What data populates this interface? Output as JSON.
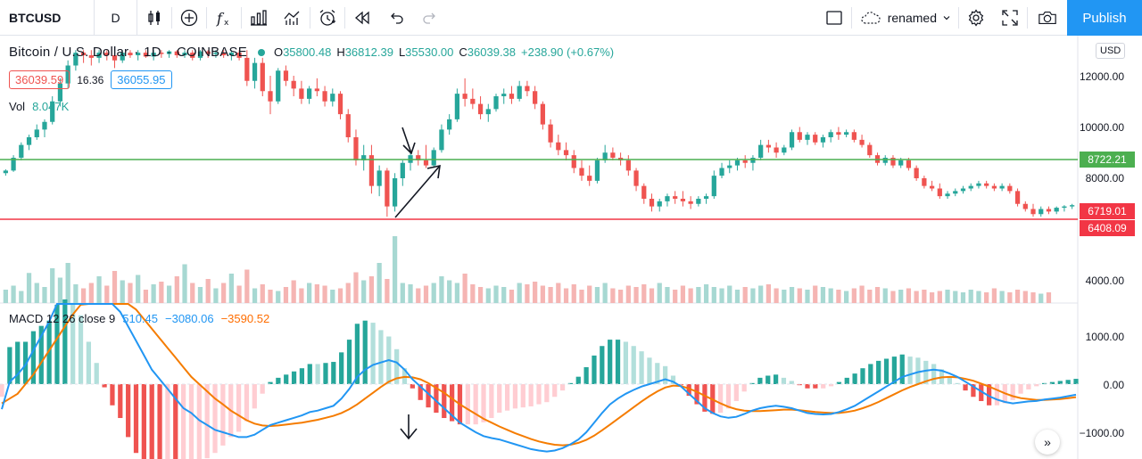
{
  "toolbar": {
    "symbol": "BTCUSD",
    "interval": "D",
    "layout_name": "renamed",
    "publish_label": "Publish",
    "icons": [
      "candles-icon",
      "add-compare-icon",
      "indicators-icon",
      "templates-icon",
      "alert-icon",
      "replay-icon",
      "undo-icon",
      "redo-icon",
      "fullscreen-select-icon",
      "cloud-icon",
      "settings-icon",
      "fullscreen-icon",
      "snapshot-icon"
    ]
  },
  "legend": {
    "title": "Bitcoin / U.S. Dollar",
    "interval": "1D",
    "exchange": "COINBASE",
    "o_label": "O",
    "o": "35800.48",
    "h_label": "H",
    "h": "36812.39",
    "l_label": "L",
    "l": "35530.00",
    "c_label": "C",
    "c": "36039.38",
    "change": "+238.90 (+0.67%)",
    "sell_price": "36039.59",
    "spread": "16.36",
    "buy_price": "36055.95",
    "vol_label": "Vol",
    "vol_value": "8.047K",
    "macd_label": "MACD 12 26 close 9",
    "macd_hist": "510.45",
    "macd_line": "−3080.06",
    "macd_signal": "−3590.52"
  },
  "axis": {
    "currency": "USD",
    "price_ticks": [
      "12000.00",
      "10000.00",
      "8000.00",
      "4000.00"
    ],
    "macd_ticks": [
      "1000.00",
      "0.00",
      "−1000.00"
    ]
  },
  "levels": {
    "green_value": "8722.21",
    "red_value_1": "6719.01",
    "red_value_2": "6408.09",
    "green_color": "#4caf50",
    "red_color": "#f23645"
  },
  "chart_data": {
    "type": "candlestick",
    "up_color": "#26a69a",
    "down_color": "#ef5350",
    "ylim": [
      6000,
      13000
    ],
    "candles": [
      [
        8200,
        8350,
        8100,
        8300
      ],
      [
        8300,
        8900,
        8250,
        8800
      ],
      [
        8800,
        9400,
        8700,
        9300
      ],
      [
        9300,
        9700,
        9100,
        9600
      ],
      [
        9600,
        10100,
        9500,
        9900
      ],
      [
        9900,
        10300,
        9600,
        10200
      ],
      [
        10200,
        11200,
        10100,
        11000
      ],
      [
        11000,
        11900,
        10800,
        11700
      ],
      [
        11700,
        12600,
        11500,
        12400
      ],
      [
        12400,
        13000,
        12200,
        12900
      ],
      [
        12900,
        13000,
        12500,
        12800
      ],
      [
        12800,
        13000,
        12400,
        12700
      ],
      [
        12700,
        13000,
        12500,
        12900
      ],
      [
        12900,
        13000,
        12600,
        12800
      ],
      [
        12800,
        13000,
        12300,
        12600
      ],
      [
        12600,
        13000,
        12500,
        12900
      ],
      [
        12900,
        13000,
        12700,
        12800
      ],
      [
        12800,
        13000,
        12600,
        12900
      ],
      [
        12900,
        13000,
        12700,
        12750
      ],
      [
        12750,
        13000,
        12600,
        12900
      ],
      [
        12900,
        13000,
        12700,
        12850
      ],
      [
        12850,
        13000,
        12700,
        12950
      ],
      [
        12950,
        13000,
        12700,
        12800
      ],
      [
        12800,
        13000,
        12700,
        12900
      ],
      [
        12900,
        13000,
        12600,
        12700
      ],
      [
        12700,
        13000,
        12600,
        12950
      ],
      [
        12950,
        13000,
        12700,
        12850
      ],
      [
        12850,
        13000,
        12700,
        12900
      ],
      [
        12900,
        13000,
        12700,
        12800
      ],
      [
        12800,
        13000,
        12600,
        12900
      ],
      [
        12900,
        13000,
        12600,
        12700
      ],
      [
        12700,
        13000,
        11600,
        11800
      ],
      [
        11800,
        12700,
        11500,
        12500
      ],
      [
        12500,
        12700,
        11200,
        11400
      ],
      [
        11400,
        12000,
        10500,
        11000
      ],
      [
        11000,
        12300,
        10900,
        12200
      ],
      [
        12200,
        12400,
        11600,
        11800
      ],
      [
        11800,
        12000,
        11200,
        11500
      ],
      [
        11500,
        11800,
        10900,
        11100
      ],
      [
        11100,
        11600,
        10900,
        11500
      ],
      [
        11500,
        11900,
        11200,
        11400
      ],
      [
        11400,
        11600,
        10800,
        11000
      ],
      [
        11000,
        11500,
        10800,
        11300
      ],
      [
        11300,
        11400,
        10300,
        10500
      ],
      [
        10500,
        10700,
        9400,
        9600
      ],
      [
        9600,
        9900,
        8500,
        8700
      ],
      [
        8700,
        9300,
        8300,
        8900
      ],
      [
        8900,
        9300,
        7400,
        7700
      ],
      [
        7700,
        8500,
        7300,
        8300
      ],
      [
        8300,
        8400,
        6500,
        6900
      ],
      [
        6900,
        8200,
        6700,
        8000
      ],
      [
        8000,
        8700,
        7700,
        8600
      ],
      [
        8600,
        9000,
        8300,
        8900
      ],
      [
        8900,
        9100,
        8500,
        8700
      ],
      [
        8700,
        9300,
        8400,
        8500
      ],
      [
        8500,
        9200,
        8400,
        9100
      ],
      [
        9100,
        10100,
        9000,
        9900
      ],
      [
        9900,
        10500,
        9700,
        10300
      ],
      [
        10300,
        11500,
        10200,
        11300
      ],
      [
        11300,
        11900,
        10800,
        11100
      ],
      [
        11100,
        11500,
        10700,
        10900
      ],
      [
        10900,
        11200,
        10300,
        10500
      ],
      [
        10500,
        10900,
        10200,
        10700
      ],
      [
        10700,
        11300,
        10600,
        11200
      ],
      [
        11200,
        11500,
        10900,
        11300
      ],
      [
        11300,
        11600,
        10900,
        11100
      ],
      [
        11100,
        11800,
        11000,
        11600
      ],
      [
        11600,
        11800,
        11200,
        11400
      ],
      [
        11400,
        11600,
        10700,
        10900
      ],
      [
        10900,
        11000,
        9900,
        10100
      ],
      [
        10100,
        10300,
        9200,
        9400
      ],
      [
        9400,
        9700,
        8900,
        9100
      ],
      [
        9100,
        9400,
        8700,
        8900
      ],
      [
        8900,
        9100,
        8200,
        8400
      ],
      [
        8400,
        8700,
        7900,
        8100
      ],
      [
        8100,
        8500,
        7700,
        7900
      ],
      [
        7900,
        8800,
        7800,
        8700
      ],
      [
        8700,
        9300,
        8600,
        9000
      ],
      [
        9000,
        9200,
        8700,
        8800
      ],
      [
        8800,
        9000,
        8500,
        8700
      ],
      [
        8700,
        8900,
        8100,
        8300
      ],
      [
        8300,
        8400,
        7500,
        7700
      ],
      [
        7700,
        7800,
        7000,
        7200
      ],
      [
        7200,
        7400,
        6700,
        6900
      ],
      [
        6900,
        7200,
        6700,
        7100
      ],
      [
        7100,
        7400,
        6900,
        7300
      ],
      [
        7300,
        7500,
        7000,
        7200
      ],
      [
        7200,
        7500,
        6900,
        7100
      ],
      [
        7100,
        7300,
        6800,
        7000
      ],
      [
        7000,
        7300,
        6900,
        7200
      ],
      [
        7200,
        7400,
        7000,
        7300
      ],
      [
        7300,
        8300,
        7200,
        8100
      ],
      [
        8100,
        8600,
        8000,
        8400
      ],
      [
        8400,
        8700,
        8200,
        8500
      ],
      [
        8500,
        8800,
        8300,
        8700
      ],
      [
        8700,
        8900,
        8400,
        8600
      ],
      [
        8600,
        8900,
        8300,
        8800
      ],
      [
        8800,
        9500,
        8700,
        9300
      ],
      [
        9300,
        9500,
        9000,
        9200
      ],
      [
        9200,
        9400,
        8800,
        9000
      ],
      [
        9000,
        9300,
        8900,
        9200
      ],
      [
        9200,
        9900,
        9100,
        9800
      ],
      [
        9800,
        10000,
        9400,
        9500
      ],
      [
        9500,
        9800,
        9300,
        9700
      ],
      [
        9700,
        9800,
        9300,
        9400
      ],
      [
        9400,
        9700,
        9200,
        9600
      ],
      [
        9600,
        9900,
        9400,
        9800
      ],
      [
        9800,
        10000,
        9500,
        9700
      ],
      [
        9700,
        9900,
        9600,
        9800
      ],
      [
        9800,
        9900,
        9400,
        9500
      ],
      [
        9500,
        9700,
        9200,
        9300
      ],
      [
        9300,
        9400,
        8800,
        8900
      ],
      [
        8900,
        9000,
        8500,
        8600
      ],
      [
        8600,
        8900,
        8500,
        8800
      ],
      [
        8800,
        8900,
        8400,
        8500
      ],
      [
        8500,
        8800,
        8400,
        8700
      ],
      [
        8700,
        8800,
        8300,
        8400
      ],
      [
        8400,
        8500,
        7900,
        8000
      ],
      [
        8000,
        8100,
        7600,
        7700
      ],
      [
        7700,
        7900,
        7500,
        7600
      ],
      [
        7600,
        7800,
        7200,
        7300
      ],
      [
        7300,
        7500,
        7200,
        7400
      ],
      [
        7400,
        7600,
        7300,
        7500
      ],
      [
        7500,
        7700,
        7400,
        7600
      ],
      [
        7600,
        7800,
        7500,
        7700
      ],
      [
        7700,
        7900,
        7600,
        7800
      ],
      [
        7800,
        7900,
        7600,
        7700
      ],
      [
        7700,
        7800,
        7500,
        7600
      ],
      [
        7600,
        7800,
        7500,
        7700
      ],
      [
        7700,
        7800,
        7400,
        7500
      ],
      [
        7500,
        7600,
        6900,
        7000
      ],
      [
        7000,
        7100,
        6700,
        6800
      ],
      [
        6800,
        7000,
        6500,
        6600
      ],
      [
        6600,
        6900,
        6500,
        6800
      ],
      [
        6800,
        6900,
        6600,
        6700
      ],
      [
        6700,
        6900,
        6600,
        6850
      ],
      [
        6850,
        6950,
        6700,
        6900
      ],
      [
        6900,
        7000,
        6800,
        6950
      ]
    ],
    "volume": [
      20,
      26,
      18,
      45,
      30,
      24,
      52,
      38,
      60,
      28,
      22,
      30,
      40,
      26,
      48,
      34,
      30,
      42,
      20,
      28,
      32,
      26,
      40,
      58,
      30,
      24,
      36,
      22,
      30,
      44,
      26,
      50,
      22,
      28,
      20,
      18,
      24,
      34,
      22,
      30,
      28,
      26,
      20,
      22,
      30,
      46,
      34,
      40,
      60,
      36,
      100,
      30,
      28,
      22,
      26,
      30,
      40,
      34,
      30,
      44,
      28,
      24,
      22,
      26,
      24,
      20,
      30,
      28,
      32,
      26,
      24,
      30,
      22,
      28,
      20,
      26,
      24,
      30,
      22,
      20,
      26,
      24,
      28,
      22,
      30,
      24,
      20,
      26,
      22,
      24,
      28,
      24,
      22,
      26,
      20,
      24,
      22,
      26,
      28,
      22,
      20,
      24,
      22,
      20,
      26,
      24,
      22,
      20,
      18,
      22,
      26,
      20,
      24,
      22,
      18,
      20,
      22,
      18,
      20,
      16,
      18,
      20,
      18,
      16,
      20,
      18,
      16,
      22,
      18,
      16,
      20,
      18,
      16,
      14,
      16
    ],
    "macd_line": [
      -0.52,
      0.05,
      0.2,
      0.4,
      0.7,
      1.0,
      1.3,
      1.7,
      2.0,
      2.2,
      2.3,
      2.2,
      2.1,
      1.9,
      1.7,
      1.5,
      1.2,
      0.9,
      0.6,
      0.3,
      0.1,
      -0.1,
      -0.3,
      -0.5,
      -0.6,
      -0.75,
      -0.85,
      -0.95,
      -1.0,
      -1.05,
      -1.1,
      -1.1,
      -1.05,
      -0.95,
      -0.85,
      -0.8,
      -0.75,
      -0.7,
      -0.65,
      -0.58,
      -0.55,
      -0.5,
      -0.45,
      -0.3,
      -0.1,
      0.15,
      0.3,
      0.4,
      0.45,
      0.5,
      0.45,
      0.3,
      0.1,
      -0.05,
      -0.2,
      -0.35,
      -0.5,
      -0.65,
      -0.8,
      -0.9,
      -1.0,
      -1.08,
      -1.12,
      -1.15,
      -1.2,
      -1.25,
      -1.3,
      -1.35,
      -1.38,
      -1.4,
      -1.38,
      -1.33,
      -1.25,
      -1.15,
      -1.0,
      -0.8,
      -0.6,
      -0.42,
      -0.3,
      -0.2,
      -0.12,
      -0.05,
      0.0,
      0.05,
      0.1,
      0.05,
      -0.05,
      -0.2,
      -0.35,
      -0.5,
      -0.6,
      -0.67,
      -0.7,
      -0.68,
      -0.62,
      -0.55,
      -0.5,
      -0.47,
      -0.45,
      -0.47,
      -0.5,
      -0.55,
      -0.6,
      -0.62,
      -0.63,
      -0.62,
      -0.58,
      -0.52,
      -0.45,
      -0.35,
      -0.25,
      -0.15,
      -0.05,
      0.05,
      0.15,
      0.2,
      0.25,
      0.28,
      0.3,
      0.28,
      0.22,
      0.15,
      0.05,
      -0.05,
      -0.15,
      -0.25,
      -0.32,
      -0.37,
      -0.4,
      -0.38,
      -0.36,
      -0.35,
      -0.32,
      -0.3,
      -0.28,
      -0.25,
      -0.22
    ],
    "macd_signal": [
      -0.4,
      -0.3,
      -0.2,
      0.0,
      0.2,
      0.45,
      0.7,
      0.95,
      1.2,
      1.45,
      1.65,
      1.8,
      1.9,
      1.93,
      1.9,
      1.82,
      1.7,
      1.55,
      1.35,
      1.15,
      0.95,
      0.75,
      0.55,
      0.35,
      0.15,
      0.0,
      -0.15,
      -0.3,
      -0.42,
      -0.55,
      -0.65,
      -0.75,
      -0.82,
      -0.86,
      -0.87,
      -0.86,
      -0.84,
      -0.82,
      -0.8,
      -0.77,
      -0.74,
      -0.7,
      -0.66,
      -0.6,
      -0.52,
      -0.42,
      -0.3,
      -0.18,
      -0.06,
      0.05,
      0.12,
      0.15,
      0.14,
      0.1,
      0.02,
      -0.08,
      -0.18,
      -0.3,
      -0.42,
      -0.52,
      -0.62,
      -0.72,
      -0.8,
      -0.88,
      -0.95,
      -1.02,
      -1.08,
      -1.14,
      -1.19,
      -1.23,
      -1.26,
      -1.27,
      -1.26,
      -1.22,
      -1.16,
      -1.07,
      -0.96,
      -0.84,
      -0.72,
      -0.6,
      -0.48,
      -0.36,
      -0.25,
      -0.15,
      -0.07,
      -0.03,
      -0.04,
      -0.09,
      -0.16,
      -0.24,
      -0.32,
      -0.4,
      -0.47,
      -0.52,
      -0.55,
      -0.56,
      -0.56,
      -0.55,
      -0.54,
      -0.53,
      -0.53,
      -0.54,
      -0.56,
      -0.58,
      -0.59,
      -0.6,
      -0.6,
      -0.58,
      -0.55,
      -0.5,
      -0.44,
      -0.37,
      -0.29,
      -0.21,
      -0.13,
      -0.06,
      0.0,
      0.06,
      0.11,
      0.14,
      0.15,
      0.14,
      0.11,
      0.07,
      0.01,
      -0.05,
      -0.12,
      -0.19,
      -0.25,
      -0.29,
      -0.31,
      -0.33,
      -0.33,
      -0.32,
      -0.31,
      -0.29,
      -0.27
    ]
  }
}
